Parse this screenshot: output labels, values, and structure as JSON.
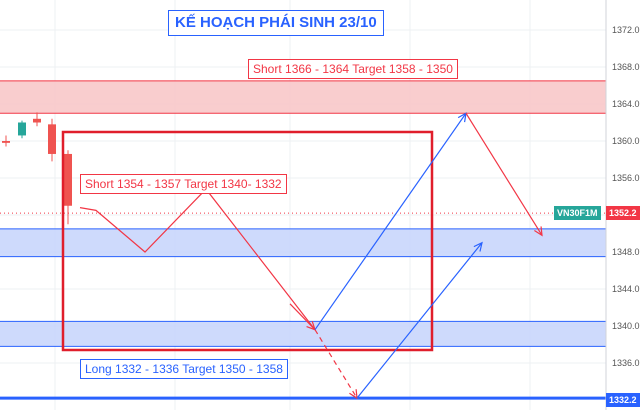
{
  "title": "KẾ HOẠCH PHÁI SINH 23/10",
  "annotations": {
    "short_upper": "Short 1366 - 1364 Target 1358 - 1350",
    "short_mid": "Short 1354 - 1357 Target 1340- 1332",
    "long_lower": "Long 1332 - 1336  Target 1350 - 1358"
  },
  "price_axis": {
    "ticks": [
      "1372.0",
      "1368.0",
      "1364.0",
      "1360.0",
      "1356.0",
      "1352.0",
      "1348.0",
      "1344.0",
      "1340.0",
      "1336.0"
    ],
    "symbol_tag": "VN30F1M",
    "last_price": "1352.2",
    "low_price": "1332.2"
  },
  "colors": {
    "red": "#f23645",
    "blue": "#2962ff",
    "red_zone": "#f8c4c6",
    "blue_zone": "#c6d3fc",
    "green_tag": "#26a69a",
    "candle_up": "#26a69a",
    "candle_down": "#ef5350"
  },
  "zones": [
    {
      "type": "resistance",
      "from": 1363.0,
      "to": 1366.5,
      "color": "red"
    },
    {
      "type": "support",
      "from": 1347.5,
      "to": 1350.5,
      "color": "blue"
    },
    {
      "type": "support",
      "from": 1337.8,
      "to": 1340.5,
      "color": "blue"
    }
  ],
  "candles": [
    {
      "open": 1360.0,
      "high": 1360.6,
      "low": 1359.4,
      "close": 1359.8
    },
    {
      "open": 1360.6,
      "high": 1362.2,
      "low": 1360.3,
      "close": 1362.0
    },
    {
      "open": 1362.4,
      "high": 1363.1,
      "low": 1361.6,
      "close": 1362.0
    },
    {
      "open": 1361.8,
      "high": 1362.4,
      "low": 1357.8,
      "close": 1358.6
    },
    {
      "open": 1358.6,
      "high": 1359.0,
      "low": 1351.0,
      "close": 1353.0
    }
  ],
  "scenario_short": [
    1352.8,
    1352.5,
    1348.0,
    1354.8,
    1339.6
  ],
  "scenario_long_a": [
    1339.6,
    1363.0
  ],
  "scenario_after_a": [
    1363.0,
    1349.8
  ],
  "scenario_dashed": [
    1339.6,
    1332.2
  ],
  "scenario_long_b": [
    1332.2,
    1349.0
  ]
}
